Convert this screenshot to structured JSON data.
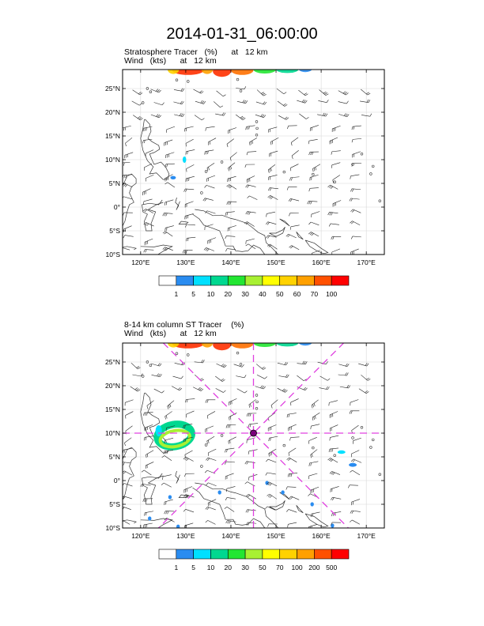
{
  "title": "2014-01-31_06:00:00",
  "panels": [
    {
      "subtitle_line1": "Stratosphere Tracer   (%)      at   12 km",
      "subtitle_line2": "Wind   (kts)      at   12 km",
      "lat_labels": [
        "25°N",
        "20°N",
        "15°N",
        "10°N",
        "5°N",
        "0°",
        "5°S",
        "10°S"
      ],
      "lon_labels": [
        "120°E",
        "130°E",
        "140°E",
        "150°E",
        "160°E",
        "170°E"
      ],
      "colorbar_labels": [
        "1",
        "5",
        "10",
        "20",
        "30",
        "40",
        "50",
        "60",
        "70",
        "100"
      ],
      "colorbar_colors": [
        "#ffffff",
        "#2a8cf0",
        "#00e0ff",
        "#00d890",
        "#22e632",
        "#a8f032",
        "#ffff00",
        "#ffd200",
        "#ffa000",
        "#ff5000",
        "#ff0000"
      ]
    },
    {
      "subtitle_line1": "8-14 km column ST Tracer    (%)",
      "subtitle_line2": "Wind   (kts)      at   12 km",
      "lat_labels": [
        "25°N",
        "20°N",
        "15°N",
        "10°N",
        "5°N",
        "0°",
        "5°S",
        "10°S"
      ],
      "lon_labels": [
        "120°E",
        "130°E",
        "140°E",
        "150°E",
        "160°E",
        "170°E"
      ],
      "colorbar_labels": [
        "1",
        "5",
        "10",
        "20",
        "30",
        "50",
        "70",
        "100",
        "200",
        "500"
      ],
      "colorbar_colors": [
        "#ffffff",
        "#2a8cf0",
        "#00e0ff",
        "#00d890",
        "#22e632",
        "#a8f032",
        "#ffff00",
        "#ffd200",
        "#ffa000",
        "#ff5000",
        "#ff0000"
      ]
    }
  ],
  "map_extent": {
    "lon_min": 116,
    "lon_max": 174,
    "lat_min": -10,
    "lat_max": 29
  },
  "cross_center": {
    "lon": 145,
    "lat": 10
  },
  "cross_color": "#e040e0"
}
